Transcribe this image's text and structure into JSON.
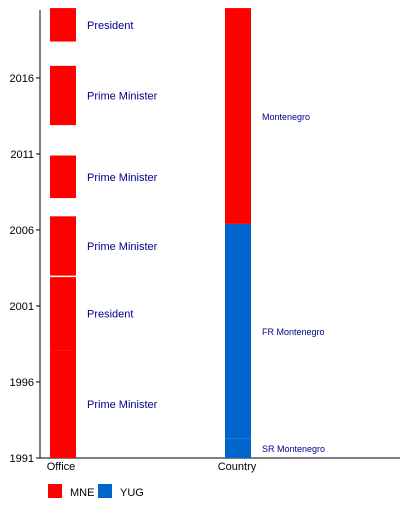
{
  "chart_data": {
    "type": "bar",
    "subtype": "timeline",
    "categories": [
      "Office",
      "Country"
    ],
    "y_ticks": [
      1991,
      1996,
      2001,
      2006,
      2011,
      2016
    ],
    "ylim": [
      1991,
      2020.6
    ],
    "colors": {
      "MNE": "#ff0000",
      "YUG": "#0066cc"
    },
    "legend": [
      {
        "name": "MNE",
        "color": "#ff0000"
      },
      {
        "name": "YUG",
        "color": "#0066cc"
      }
    ],
    "legend_position": "bottom-left",
    "series": [
      {
        "category": "Office",
        "segments": [
          {
            "label": "Prime Minister",
            "start": 1991.0,
            "end": 1998.1,
            "group": "MNE"
          },
          {
            "label": "President",
            "start": 1998.1,
            "end": 2002.9,
            "group": "MNE"
          },
          {
            "label": "Prime Minister",
            "start": 2003.0,
            "end": 2006.9,
            "group": "MNE"
          },
          {
            "label": "Prime Minister",
            "start": 2008.1,
            "end": 2010.9,
            "group": "MNE"
          },
          {
            "label": "Prime Minister",
            "start": 2012.9,
            "end": 2016.8,
            "group": "MNE"
          },
          {
            "label": "President",
            "start": 2018.4,
            "end": 2020.6,
            "group": "MNE"
          }
        ]
      },
      {
        "category": "Country",
        "segments": [
          {
            "label": "SR Montenegro",
            "start": 1991.0,
            "end": 1992.3,
            "group": "YUG"
          },
          {
            "label": "FR Montenegro",
            "start": 1992.3,
            "end": 2006.4,
            "group": "YUG"
          },
          {
            "label": "Montenegro",
            "start": 2006.4,
            "end": 2020.6,
            "group": "MNE"
          }
        ]
      }
    ]
  }
}
